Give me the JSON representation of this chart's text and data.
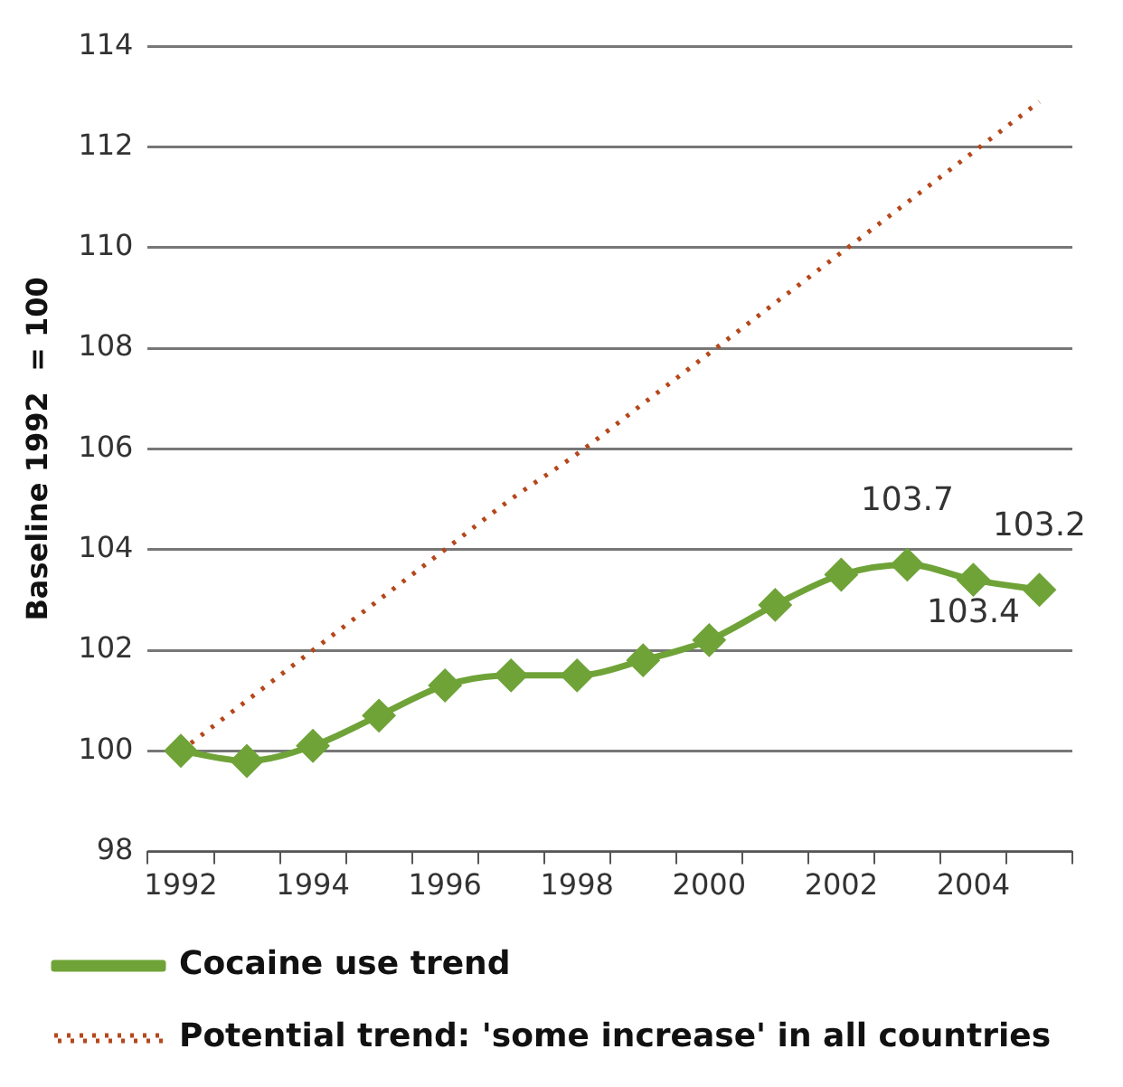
{
  "chart_data": {
    "type": "line",
    "ylabel": "Baseline 1992  = 100",
    "categories": [
      "1992",
      null,
      "1994",
      null,
      "1996",
      null,
      "1998",
      null,
      "2000",
      null,
      "2002",
      null,
      "2004",
      null
    ],
    "series": [
      {
        "name": "Cocaine use trend",
        "color": "#6fa338",
        "marker": "diamond",
        "line_style": "solid",
        "values": [
          100,
          99.8,
          100.1,
          100.7,
          101.3,
          101.5,
          101.5,
          101.8,
          102.2,
          102.9,
          103.5,
          103.7,
          103.4,
          103.2
        ],
        "value_labels": [
          null,
          null,
          null,
          null,
          null,
          null,
          null,
          null,
          null,
          null,
          null,
          "103.7",
          "103.4",
          "103.2"
        ]
      },
      {
        "name": "Potential trend: 'some increase' in all countries",
        "color": "#b5471b",
        "marker": "none",
        "line_style": "dotted",
        "values": [
          100,
          101,
          102,
          103,
          104,
          105,
          105.9,
          106.9,
          107.9,
          108.9,
          109.9,
          110.9,
          111.9,
          112.9
        ]
      }
    ],
    "ylim": [
      98,
      114
    ],
    "yticks": [
      98,
      100,
      102,
      104,
      106,
      108,
      110,
      112,
      114
    ],
    "grid": "y",
    "legend": "bottom"
  }
}
